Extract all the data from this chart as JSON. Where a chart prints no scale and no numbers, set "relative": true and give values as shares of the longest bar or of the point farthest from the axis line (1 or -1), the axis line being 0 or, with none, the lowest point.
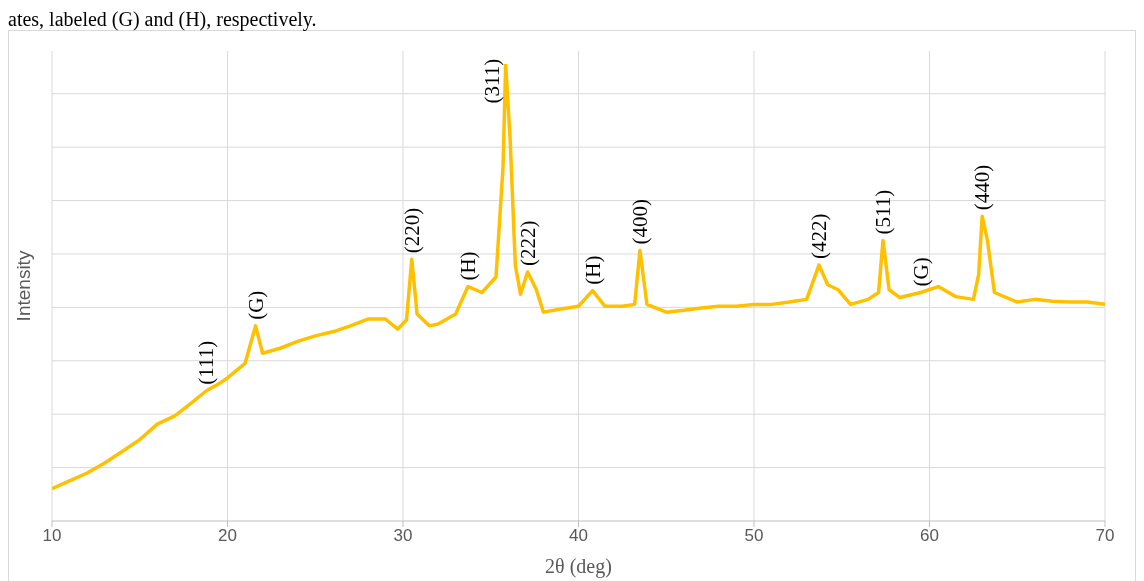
{
  "chart_data": {
    "type": "line",
    "relative": true,
    "xlabel": "2θ (deg)",
    "ylabel": "Intensity",
    "xlim": [
      10,
      70
    ],
    "xticks": [
      10,
      20,
      30,
      40,
      50,
      60,
      70
    ],
    "grid": true,
    "legend": false,
    "marker": "none",
    "line_style": "solid",
    "x": [
      10,
      11,
      12,
      13,
      14,
      15,
      16,
      17,
      18,
      18.8,
      19.5,
      20,
      21,
      21.6,
      22,
      23,
      24,
      25,
      26,
      27,
      28,
      29,
      29.7,
      30.2,
      30.5,
      30.8,
      31.5,
      32,
      33,
      33.7,
      34.5,
      35.3,
      35.7,
      35.85,
      36.1,
      36.4,
      36.7,
      37.1,
      37.6,
      38,
      39,
      40,
      40.8,
      41.5,
      42.5,
      43.2,
      43.5,
      43.9,
      45,
      46,
      47,
      48,
      49,
      50,
      51,
      52,
      53,
      53.7,
      54.2,
      54.8,
      55.5,
      56.5,
      57.1,
      57.35,
      57.7,
      58.3,
      59.5,
      60.5,
      61.5,
      62.5,
      62.8,
      63,
      63.3,
      63.7,
      65,
      66,
      67,
      68,
      69,
      70
    ],
    "series": [
      {
        "color": "#ffc000",
        "values": [
          0.071,
          0.088,
          0.105,
          0.127,
          0.152,
          0.178,
          0.212,
          0.23,
          0.26,
          0.285,
          0.3,
          0.313,
          0.345,
          0.427,
          0.367,
          0.378,
          0.393,
          0.405,
          0.414,
          0.427,
          0.442,
          0.442,
          0.42,
          0.44,
          0.573,
          0.453,
          0.427,
          0.431,
          0.453,
          0.513,
          0.5,
          0.534,
          0.775,
          1,
          0.839,
          0.56,
          0.496,
          0.545,
          0.506,
          0.457,
          0.464,
          0.47,
          0.504,
          0.47,
          0.47,
          0.474,
          0.592,
          0.474,
          0.457,
          0.461,
          0.466,
          0.47,
          0.47,
          0.474,
          0.474,
          0.479,
          0.485,
          0.56,
          0.517,
          0.506,
          0.474,
          0.485,
          0.5,
          0.614,
          0.506,
          0.489,
          0.5,
          0.513,
          0.491,
          0.485,
          0.539,
          0.667,
          0.614,
          0.5,
          0.479,
          0.485,
          0.481,
          0.479,
          0.479,
          0.474
        ]
      }
    ],
    "annotations": [
      "ates, labeled (G) and (H), respectively.",
      {
        "text": "(111)",
        "x": 18.8,
        "y": 0.285
      },
      {
        "text": "(G)",
        "x": 21.6,
        "y": 0.427
      },
      {
        "text": "(220)",
        "x": 30.5,
        "y": 0.573
      },
      {
        "text": "(H)",
        "x": 33.7,
        "y": 0.513
      },
      {
        "text": "(311)",
        "x": 35.85,
        "y": 1
      },
      {
        "text": "(222)",
        "x": 37.1,
        "y": 0.545
      },
      {
        "text": "(H)",
        "x": 40.8,
        "y": 0.504
      },
      {
        "text": "(400)",
        "x": 43.5,
        "y": 0.592
      },
      {
        "text": "(422)",
        "x": 53.7,
        "y": 0.56
      },
      {
        "text": "(511)",
        "x": 57.35,
        "y": 0.614
      },
      {
        "text": "(G)",
        "x": 59.5,
        "y": 0.5
      },
      {
        "text": "(440)",
        "x": 63,
        "y": 0.667
      }
    ]
  }
}
